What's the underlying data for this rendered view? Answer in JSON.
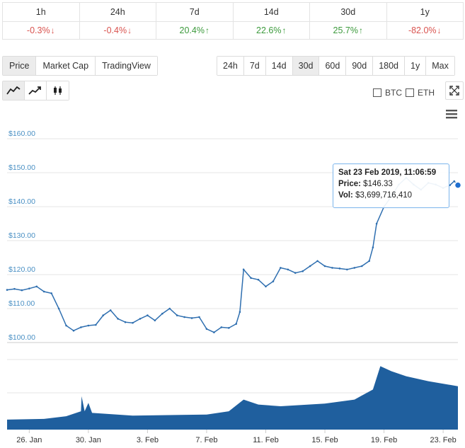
{
  "change_table": {
    "headers": [
      "1h",
      "24h",
      "7d",
      "14d",
      "30d",
      "1y"
    ],
    "values": [
      {
        "text": "-0.3%",
        "dir": "down"
      },
      {
        "text": "-0.4%",
        "dir": "down"
      },
      {
        "text": "20.4%",
        "dir": "up"
      },
      {
        "text": "22.6%",
        "dir": "up"
      },
      {
        "text": "25.7%",
        "dir": "up"
      },
      {
        "text": "-82.0%",
        "dir": "down"
      }
    ]
  },
  "metric_tabs": [
    "Price",
    "Market Cap",
    "TradingView"
  ],
  "metric_active": "Price",
  "range_tabs": [
    "24h",
    "7d",
    "14d",
    "30d",
    "60d",
    "90d",
    "180d",
    "1y",
    "Max"
  ],
  "range_active": "30d",
  "chart_types": [
    {
      "name": "line-chart-icon",
      "active": true
    },
    {
      "name": "ohlc-trend-icon",
      "active": false
    },
    {
      "name": "candlestick-icon",
      "active": false
    }
  ],
  "compare": [
    {
      "label": "BTC",
      "checked": false
    },
    {
      "label": "ETH",
      "checked": false
    }
  ],
  "tooltip": {
    "date": "Sat 23 Feb 2019, 11:06:59",
    "price_label": "Price:",
    "price_value": "$146.33",
    "vol_label": "Vol:",
    "vol_value": "$3,699,716,410"
  },
  "colors": {
    "line": "#2f6fb0",
    "volume": "#1f5f9e",
    "grid": "#e6e6e6",
    "negative": "#d9534f",
    "positive": "#3c9a3c"
  },
  "chart_data": {
    "type": "line",
    "ylim": [
      100,
      160
    ],
    "yticks": [
      "$160.00",
      "$150.00",
      "$140.00",
      "$130.00",
      "$120.00",
      "$110.00",
      "$100.00"
    ],
    "ytick_values": [
      160,
      150,
      140,
      130,
      120,
      110,
      100
    ],
    "x_start": "2019-01-24T12:00",
    "x_end": "2019-02-24T00:00",
    "xticks": [
      "26. Jan",
      "30. Jan",
      "3. Feb",
      "7. Feb",
      "11. Feb",
      "15. Feb",
      "19. Feb",
      "23. Feb"
    ],
    "xtick_dates": [
      "2019-01-26",
      "2019-01-30",
      "2019-02-03",
      "2019-02-07",
      "2019-02-11",
      "2019-02-15",
      "2019-02-19",
      "2019-02-23"
    ],
    "series": [
      {
        "kind": "price",
        "points": [
          [
            "2019-01-24T12:00",
            115.5
          ],
          [
            "2019-01-25T00:00",
            115.8
          ],
          [
            "2019-01-25T12:00",
            115.4
          ],
          [
            "2019-01-26T00:00",
            115.9
          ],
          [
            "2019-01-26T12:00",
            116.5
          ],
          [
            "2019-01-27T00:00",
            115.0
          ],
          [
            "2019-01-27T12:00",
            114.5
          ],
          [
            "2019-01-28T00:00",
            110.0
          ],
          [
            "2019-01-28T12:00",
            105.0
          ],
          [
            "2019-01-29T00:00",
            103.5
          ],
          [
            "2019-01-29T12:00",
            104.5
          ],
          [
            "2019-01-30T00:00",
            105.0
          ],
          [
            "2019-01-30T12:00",
            105.2
          ],
          [
            "2019-01-31T00:00",
            108.0
          ],
          [
            "2019-01-31T12:00",
            109.5
          ],
          [
            "2019-02-01T00:00",
            107.0
          ],
          [
            "2019-02-01T12:00",
            106.0
          ],
          [
            "2019-02-02T00:00",
            105.8
          ],
          [
            "2019-02-02T12:00",
            107.0
          ],
          [
            "2019-02-03T00:00",
            108.0
          ],
          [
            "2019-02-03T12:00",
            106.5
          ],
          [
            "2019-02-04T00:00",
            108.5
          ],
          [
            "2019-02-04T12:00",
            110.0
          ],
          [
            "2019-02-05T00:00",
            108.0
          ],
          [
            "2019-02-05T12:00",
            107.5
          ],
          [
            "2019-02-06T00:00",
            107.2
          ],
          [
            "2019-02-06T12:00",
            107.5
          ],
          [
            "2019-02-07T00:00",
            104.0
          ],
          [
            "2019-02-07T12:00",
            103.0
          ],
          [
            "2019-02-08T00:00",
            104.5
          ],
          [
            "2019-02-08T12:00",
            104.3
          ],
          [
            "2019-02-09T00:00",
            105.5
          ],
          [
            "2019-02-09T06:00",
            109.0
          ],
          [
            "2019-02-09T12:00",
            121.5
          ],
          [
            "2019-02-10T00:00",
            119.0
          ],
          [
            "2019-02-10T12:00",
            118.5
          ],
          [
            "2019-02-11T00:00",
            116.5
          ],
          [
            "2019-02-11T12:00",
            118.0
          ],
          [
            "2019-02-12T00:00",
            122.0
          ],
          [
            "2019-02-12T12:00",
            121.5
          ],
          [
            "2019-02-13T00:00",
            120.5
          ],
          [
            "2019-02-13T12:00",
            121.0
          ],
          [
            "2019-02-14T00:00",
            122.5
          ],
          [
            "2019-02-14T12:00",
            124.0
          ],
          [
            "2019-02-15T00:00",
            122.5
          ],
          [
            "2019-02-15T12:00",
            122.0
          ],
          [
            "2019-02-16T00:00",
            121.8
          ],
          [
            "2019-02-16T12:00",
            121.5
          ],
          [
            "2019-02-17T00:00",
            122.0
          ],
          [
            "2019-02-17T12:00",
            122.5
          ],
          [
            "2019-02-18T00:00",
            124.0
          ],
          [
            "2019-02-18T06:00",
            128.0
          ],
          [
            "2019-02-18T12:00",
            135.0
          ],
          [
            "2019-02-19T00:00",
            140.0
          ],
          [
            "2019-02-19T12:00",
            143.0
          ],
          [
            "2019-02-20T00:00",
            146.5
          ],
          [
            "2019-02-20T12:00",
            148.5
          ],
          [
            "2019-02-21T00:00",
            146.5
          ],
          [
            "2019-02-21T12:00",
            145.0
          ],
          [
            "2019-02-22T00:00",
            147.0
          ],
          [
            "2019-02-22T12:00",
            146.5
          ],
          [
            "2019-02-23T00:00",
            145.5
          ],
          [
            "2019-02-23T11:00",
            146.33
          ],
          [
            "2019-02-23T18:00",
            147.5
          ],
          [
            "2019-02-24T00:00",
            146.33
          ]
        ]
      },
      {
        "kind": "volume",
        "points": [
          [
            "2019-01-24T12:00",
            0.3
          ],
          [
            "2019-01-27T00:00",
            0.32
          ],
          [
            "2019-01-28T12:00",
            0.4
          ],
          [
            "2019-01-29T12:00",
            0.55
          ],
          [
            "2019-01-29T13:00",
            1.0
          ],
          [
            "2019-01-29T18:00",
            0.55
          ],
          [
            "2019-01-30T00:00",
            0.8
          ],
          [
            "2019-01-30T06:00",
            0.5
          ],
          [
            "2019-02-02T00:00",
            0.42
          ],
          [
            "2019-02-07T00:00",
            0.45
          ],
          [
            "2019-02-08T12:00",
            0.55
          ],
          [
            "2019-02-09T12:00",
            0.9
          ],
          [
            "2019-02-10T12:00",
            0.75
          ],
          [
            "2019-02-12T00:00",
            0.7
          ],
          [
            "2019-02-15T00:00",
            0.78
          ],
          [
            "2019-02-17T00:00",
            0.9
          ],
          [
            "2019-02-18T06:00",
            1.2
          ],
          [
            "2019-02-18T18:00",
            1.9
          ],
          [
            "2019-02-19T12:00",
            1.75
          ],
          [
            "2019-02-20T12:00",
            1.6
          ],
          [
            "2019-02-22T00:00",
            1.45
          ],
          [
            "2019-02-24T00:00",
            1.3
          ]
        ]
      }
    ],
    "legend": "none",
    "grid": true
  }
}
